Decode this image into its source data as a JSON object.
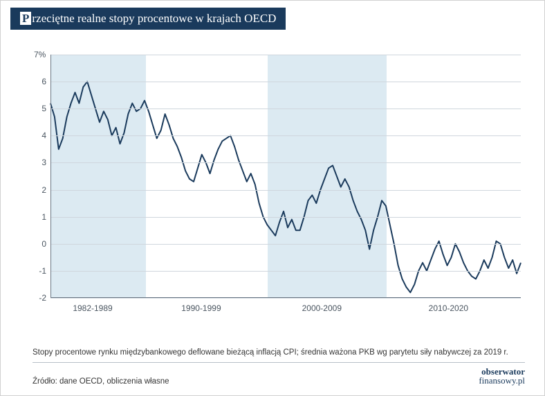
{
  "title": {
    "drop": "P",
    "rest": "rzeciętne realne stopy procentowe w krajach OECD"
  },
  "chart": {
    "type": "line",
    "background_color": "#ffffff",
    "shade_color": "#dceaf2",
    "grid_color": "#cfd6dd",
    "axis_color": "#6a7785",
    "line_color": "#1a3a5c",
    "line_width": 2,
    "y": {
      "min": -2,
      "max": 7,
      "ticks": [
        -2,
        -1,
        0,
        1,
        2,
        3,
        4,
        5,
        6,
        7
      ],
      "unit_label": "7%",
      "label_fontsize": 12,
      "label_color": "#4a5560"
    },
    "x": {
      "decades": [
        {
          "label": "1982-1989",
          "start": 1982,
          "end": 1989
        },
        {
          "label": "1990-1999",
          "start": 1990,
          "end": 1999
        },
        {
          "label": "2000-2009",
          "start": 2000,
          "end": 2009
        },
        {
          "label": "2010-2020",
          "start": 2010,
          "end": 2020
        }
      ],
      "shaded": [
        {
          "start": 1982,
          "end": 1989.9
        },
        {
          "start": 2000,
          "end": 2009.9
        }
      ],
      "range": {
        "start": 1982,
        "end": 2021
      }
    },
    "series": [
      5.2,
      4.7,
      3.5,
      3.9,
      4.7,
      5.2,
      5.6,
      5.2,
      5.8,
      6.0,
      5.5,
      5.0,
      4.5,
      4.9,
      4.6,
      4.0,
      4.3,
      3.7,
      4.1,
      4.8,
      5.2,
      4.9,
      5.0,
      5.3,
      4.9,
      4.4,
      3.9,
      4.2,
      4.8,
      4.4,
      3.9,
      3.6,
      3.2,
      2.7,
      2.4,
      2.3,
      2.8,
      3.3,
      3.0,
      2.6,
      3.1,
      3.5,
      3.8,
      3.9,
      4.0,
      3.6,
      3.1,
      2.7,
      2.3,
      2.6,
      2.2,
      1.5,
      1.0,
      0.7,
      0.5,
      0.3,
      0.8,
      1.2,
      0.6,
      0.9,
      0.5,
      0.5,
      1.0,
      1.6,
      1.8,
      1.5,
      2.0,
      2.4,
      2.8,
      2.9,
      2.5,
      2.1,
      2.4,
      2.1,
      1.6,
      1.2,
      0.9,
      0.5,
      -0.2,
      0.5,
      1.0,
      1.6,
      1.4,
      0.7,
      0.0,
      -0.8,
      -1.3,
      -1.6,
      -1.8,
      -1.5,
      -1.0,
      -0.7,
      -1.0,
      -0.6,
      -0.2,
      0.1,
      -0.4,
      -0.8,
      -0.5,
      0.0,
      -0.3,
      -0.7,
      -1.0,
      -1.2,
      -1.3,
      -1.0,
      -0.6,
      -0.9,
      -0.5,
      0.1,
      0.0,
      -0.5,
      -0.9,
      -0.6,
      -1.1,
      -0.7
    ]
  },
  "note": "Stopy procentowe rynku międzybankowego deflowane bieżącą inflacją CPI; średnia ważona PKB wg parytetu siły nabywczej za 2019 r.",
  "source": "Źródło: dane OECD, obliczenia własne",
  "logo": {
    "line1": "obserwator",
    "line2": "finansowy.pl"
  }
}
